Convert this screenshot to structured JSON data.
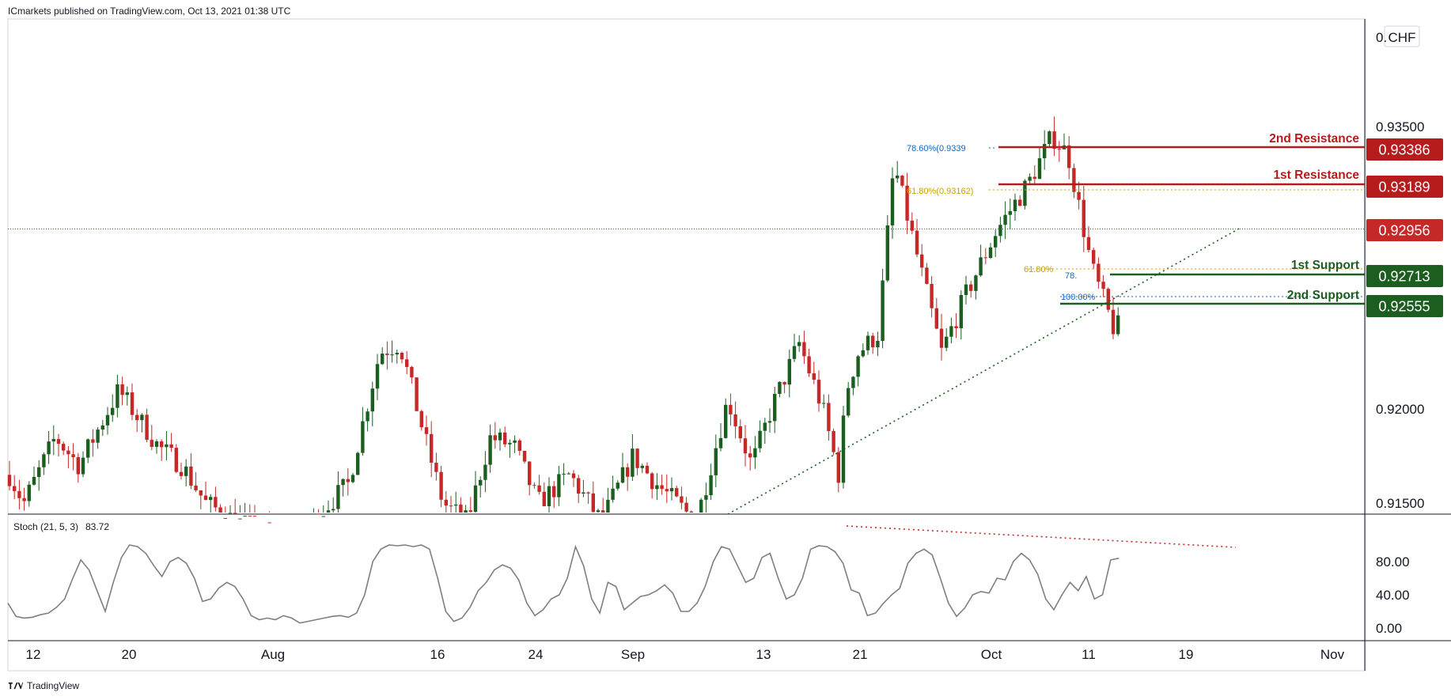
{
  "header": {
    "publisher": "ICmarkets published on TradingView.com, Oct 13, 2021 01:38 UTC"
  },
  "footer": {
    "brand": "TradingView"
  },
  "currency_badge": "CHF",
  "stoch": {
    "title": "Stoch (21, 5, 3)",
    "value": "83.72"
  },
  "colors": {
    "up": "#1b5e20",
    "down": "#c62828",
    "resistance": "#b71c1c",
    "support": "#1b5e20",
    "fib_gold": "#c8a000",
    "fib_blue": "#1565c0",
    "stoch_line": "#7e7e86"
  },
  "chart_data": {
    "type": "candlestick",
    "price_axis": {
      "ticks": [
        "0.93500",
        "0.92000",
        "0.91500"
      ],
      "top_partial_label": "0.",
      "ylim": [
        0.915,
        0.9395
      ]
    },
    "x_tick_labels": [
      "12",
      "20",
      "Aug",
      "16",
      "24",
      "Sep",
      "13",
      "21",
      "Oct",
      "11",
      "19",
      "Nov"
    ],
    "levels": [
      {
        "label": "2nd Resistance",
        "value": "0.93386",
        "kind": "resistance"
      },
      {
        "label": "1st Resistance",
        "value": "0.93189",
        "kind": "resistance"
      },
      {
        "label": "",
        "value": "0.92956",
        "kind": "current"
      },
      {
        "label": "1st Support",
        "value": "0.92713",
        "kind": "support"
      },
      {
        "label": "2nd Support",
        "value": "0.92555",
        "kind": "support"
      }
    ],
    "fib_labels": [
      {
        "text": "78.60%(0.9339"
      },
      {
        "text": "61.80%(0.93162)"
      },
      {
        "text": "61.80%"
      },
      {
        "text": "78."
      },
      {
        "text": "100.00%"
      }
    ],
    "stoch_axis": {
      "ticks": [
        "80.00",
        "40.00",
        "0.00"
      ],
      "ylim": [
        0,
        100
      ]
    },
    "stoch_series": [
      30,
      14,
      12,
      13,
      16,
      18,
      25,
      35,
      60,
      82,
      70,
      45,
      20,
      55,
      85,
      100,
      98,
      90,
      75,
      62,
      80,
      85,
      78,
      60,
      32,
      35,
      48,
      55,
      50,
      35,
      15,
      10,
      12,
      10,
      15,
      12,
      6,
      8,
      10,
      12,
      14,
      15,
      13,
      18,
      40,
      80,
      95,
      100,
      99,
      100,
      98,
      100,
      95,
      60,
      20,
      8,
      12,
      25,
      45,
      55,
      70,
      76,
      72,
      58,
      30,
      15,
      22,
      35,
      40,
      60,
      98,
      75,
      35,
      18,
      55,
      50,
      22,
      30,
      38,
      40,
      45,
      52,
      42,
      20,
      20,
      30,
      50,
      80,
      98,
      95,
      75,
      55,
      60,
      85,
      90,
      60,
      35,
      40,
      60,
      95,
      99,
      98,
      92,
      78,
      46,
      42,
      15,
      18,
      30,
      40,
      48,
      78,
      90,
      95,
      88,
      60,
      30,
      14,
      24,
      40,
      44,
      42,
      60,
      58,
      80,
      90,
      82,
      65,
      35,
      22,
      40,
      55,
      45,
      62,
      35,
      40,
      82,
      84
    ]
  }
}
